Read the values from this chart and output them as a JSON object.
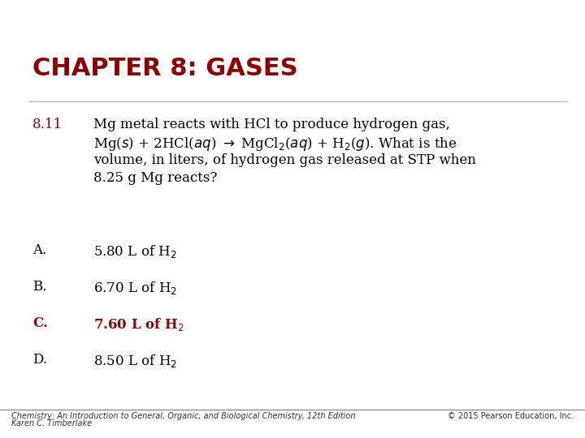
{
  "title": "CHAPTER 8: GASES",
  "title_color": "#8B0000",
  "title_fontsize": 22,
  "question_number": "8.11",
  "question_number_color": "#8B0000",
  "question_text_line1": "Mg metal reacts with HCl to produce hydrogen gas,",
  "question_text_line2": "Mg($s$) + 2HCl($aq$) $\\rightarrow$ MgCl$_2$($aq$) + H$_2$($g$). What is the",
  "question_text_line3": "volume, in liters, of hydrogen gas released at STP when",
  "question_text_line4": "8.25 g Mg reacts?",
  "options": [
    {
      "letter": "A.",
      "text": "5.80 L of H$_2$",
      "correct": false
    },
    {
      "letter": "B.",
      "text": "6.70 L of H$_2$",
      "correct": false
    },
    {
      "letter": "C.",
      "text": "7.60 L of H$_2$",
      "correct": true
    },
    {
      "letter": "D.",
      "text": "8.50 L of H$_2$",
      "correct": false
    }
  ],
  "correct_color": "#8B0000",
  "normal_color": "#000000",
  "footer_left1": "Chemistry: An Introduction to General, Organic, and Biological Chemistry, 12th Edition",
  "footer_left2": "Karen C. Timberlake",
  "footer_right": "© 2015 Pearson Education, Inc.",
  "background_color": "#FFFFFF",
  "text_fontsize": 12,
  "option_fontsize": 12,
  "footer_fontsize": 7
}
